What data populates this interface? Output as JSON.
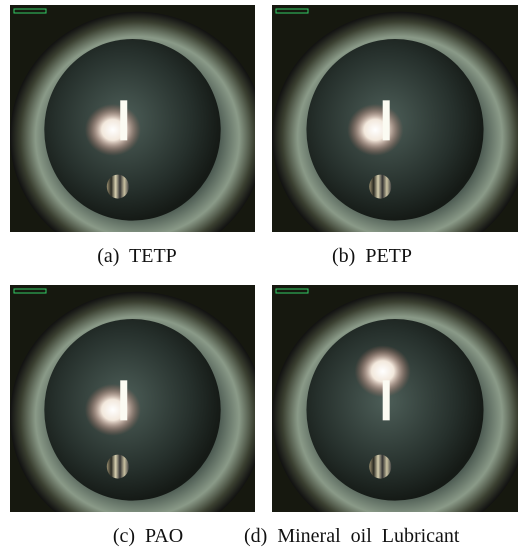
{
  "figure": {
    "panels": [
      {
        "caption": "(a)  TETP"
      },
      {
        "caption": "(b)  PETP"
      },
      {
        "caption": "(c)  PAO"
      },
      {
        "caption": "(d)  Mineral  oil  Lubricant"
      }
    ]
  }
}
